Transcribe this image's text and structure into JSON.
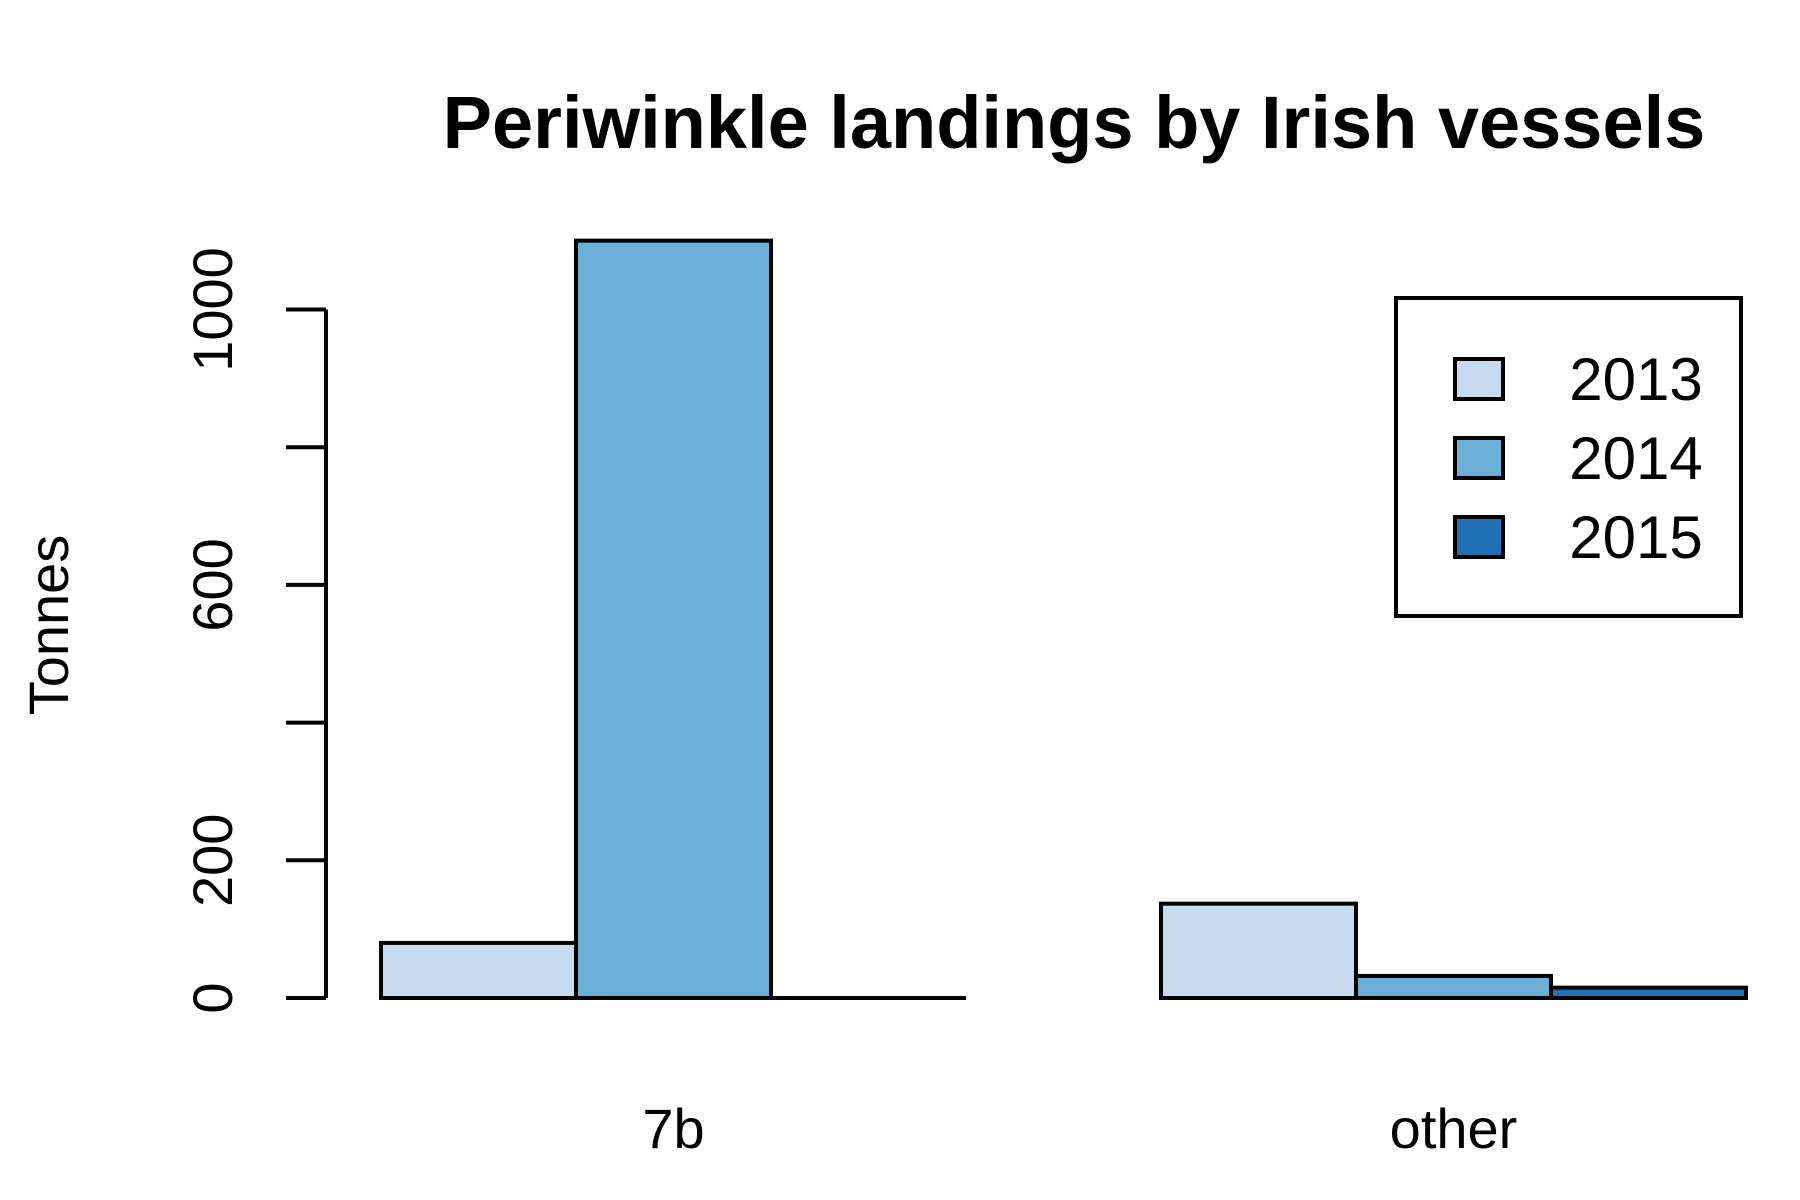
{
  "chart_data": {
    "type": "bar",
    "title": "Periwinkle landings by Irish vessels",
    "xlabel": "",
    "ylabel": "Tonnes",
    "categories": [
      "7b",
      "other"
    ],
    "series": [
      {
        "name": "2013",
        "values": [
          80,
          137
        ],
        "color": "#c6dbef"
      },
      {
        "name": "2014",
        "values": [
          1100,
          32
        ],
        "color": "#6baed6"
      },
      {
        "name": "2015",
        "values": [
          0,
          15
        ],
        "color": "#2171b5"
      }
    ],
    "yticks": [
      0,
      200,
      600,
      1000
    ],
    "ylim": [
      0,
      1100
    ],
    "grid": false,
    "legend": "top-right",
    "layout": "grouped"
  }
}
